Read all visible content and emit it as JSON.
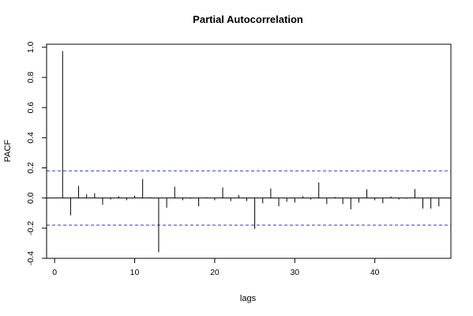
{
  "chart_data": {
    "type": "bar",
    "title": "Partial Autocorrelation",
    "xlabel": "lags",
    "ylabel": "PACF",
    "xlim": [
      -1,
      49.5
    ],
    "ylim": [
      -0.4,
      1.02
    ],
    "x_ticks": [
      0,
      10,
      20,
      30,
      40
    ],
    "y_ticks": [
      -0.4,
      -0.2,
      0.0,
      0.2,
      0.4,
      0.6,
      0.8,
      1.0
    ],
    "y_tick_labels": [
      "-0.4",
      "-0.2",
      "0.0",
      "0.2",
      "0.4",
      "0.6",
      "0.8",
      "1.0"
    ],
    "x_tick_labels": [
      "0",
      "10",
      "20",
      "30",
      "40"
    ],
    "confidence_band": [
      0.18,
      -0.18
    ],
    "band_color": "#3333cc",
    "grid": false,
    "x": [
      1,
      2,
      3,
      4,
      5,
      6,
      7,
      8,
      9,
      10,
      11,
      12,
      13,
      14,
      15,
      16,
      17,
      18,
      19,
      20,
      21,
      22,
      23,
      24,
      25,
      26,
      27,
      28,
      29,
      30,
      31,
      32,
      33,
      34,
      35,
      36,
      37,
      38,
      39,
      40,
      41,
      42,
      43,
      44,
      45,
      46,
      47,
      48
    ],
    "values": [
      0.975,
      -0.115,
      0.08,
      0.025,
      0.032,
      -0.045,
      -0.01,
      0.012,
      -0.015,
      0.015,
      0.127,
      0.005,
      -0.36,
      -0.065,
      0.075,
      -0.015,
      -0.005,
      -0.055,
      0.005,
      -0.015,
      0.07,
      -0.02,
      0.02,
      -0.02,
      -0.205,
      -0.035,
      0.063,
      -0.055,
      -0.025,
      -0.03,
      0.012,
      -0.01,
      0.103,
      -0.04,
      0.008,
      -0.04,
      -0.075,
      -0.03,
      0.058,
      -0.015,
      -0.035,
      0.01,
      -0.01,
      -0.005,
      0.06,
      -0.07,
      -0.07,
      -0.055
    ]
  }
}
